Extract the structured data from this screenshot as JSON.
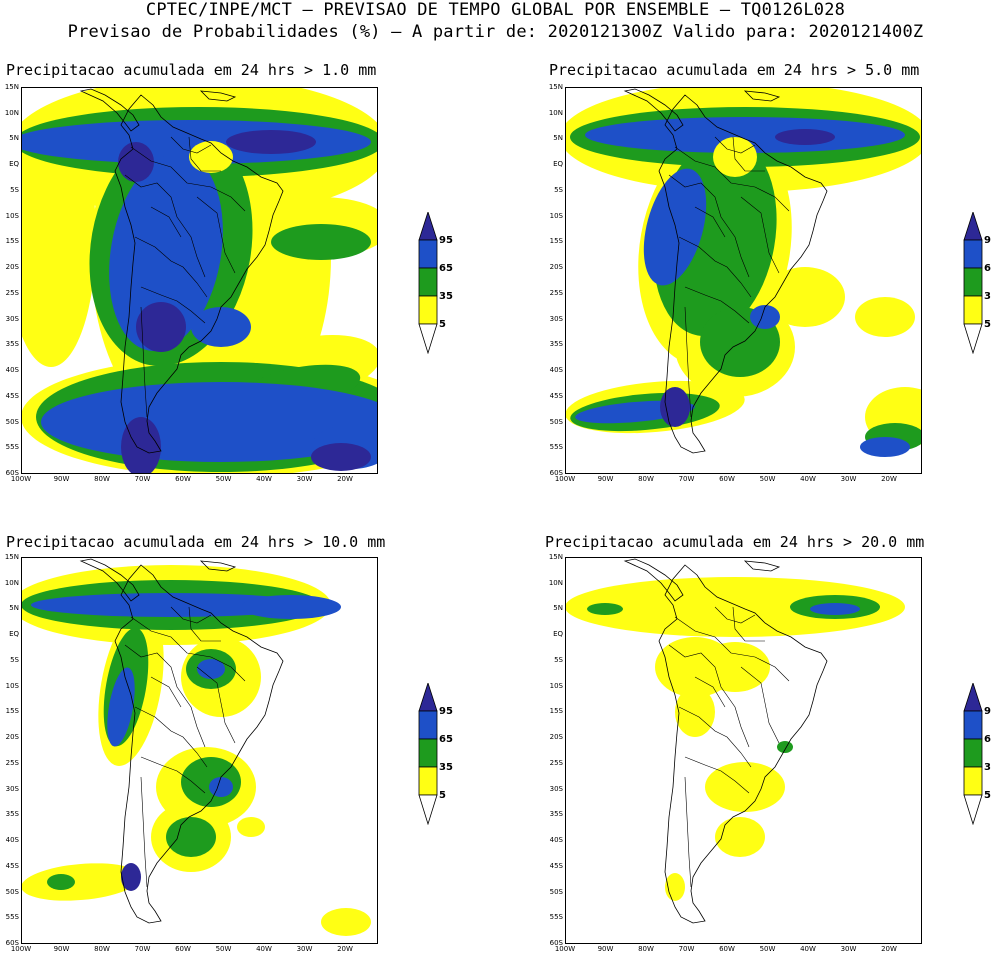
{
  "header": {
    "line1": "CPTEC/INPE/MCT – PREVISAO DE TEMPO GLOBAL POR ENSEMBLE – TQ0126L028",
    "line2": "Previsao de Probabilidades (%) –  A partir de: 2020121300Z  Valido para: 2020121400Z"
  },
  "axes": {
    "lat_labels": [
      "15N",
      "10N",
      "5N",
      "EQ",
      "5S",
      "10S",
      "15S",
      "20S",
      "25S",
      "30S",
      "35S",
      "40S",
      "45S",
      "50S",
      "55S",
      "60S"
    ],
    "lon_labels": [
      "100W",
      "90W",
      "80W",
      "70W",
      "60W",
      "50W",
      "40W",
      "30W",
      "20W"
    ]
  },
  "legend": {
    "levels": [
      "95",
      "65",
      "35",
      "5"
    ],
    "colors": [
      "#1e50c8",
      "#1e9b1e",
      "#ffff14",
      "#2d2896"
    ]
  },
  "panels": [
    {
      "title": "Precipitacao acumulada em 24 hrs > 1.0 mm"
    },
    {
      "title": "Precipitacao acumulada em 24 hrs > 5.0 mm"
    },
    {
      "title": "Precipitacao acumulada em 24 hrs > 10.0 mm"
    },
    {
      "title": "Precipitacao acumulada em 24 hrs > 20.0 mm"
    }
  ]
}
